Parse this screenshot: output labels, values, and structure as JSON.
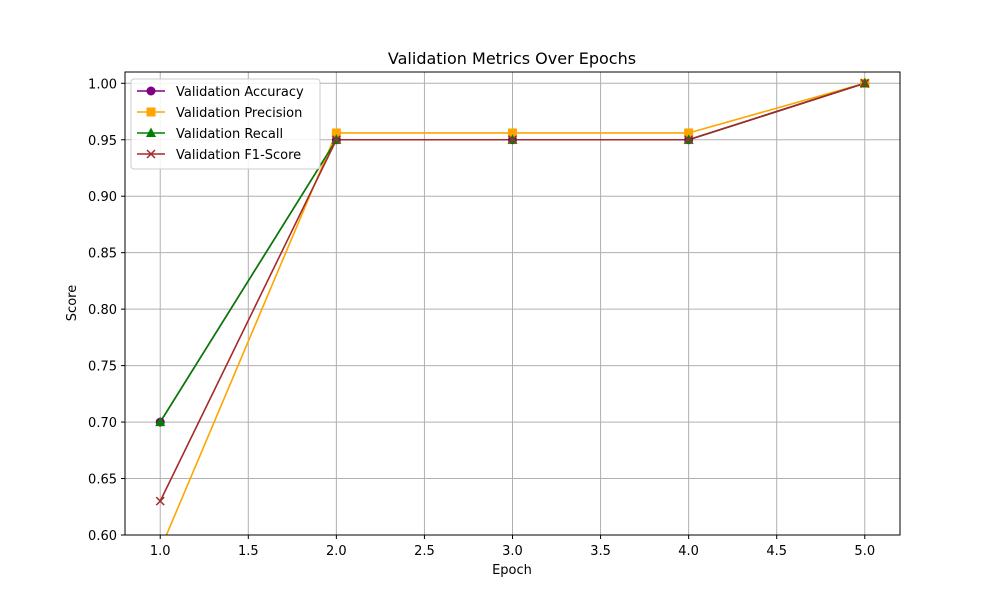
{
  "chart_data": {
    "type": "line",
    "title": "Validation Metrics Over Epochs",
    "xlabel": "Epoch",
    "ylabel": "Score",
    "xlim": [
      0.8,
      5.2
    ],
    "ylim": [
      0.6,
      1.01
    ],
    "xticks": [
      1.0,
      1.5,
      2.0,
      2.5,
      3.0,
      3.5,
      4.0,
      4.5,
      5.0
    ],
    "xtick_labels": [
      "1.0",
      "1.5",
      "2.0",
      "2.5",
      "3.0",
      "3.5",
      "4.0",
      "4.5",
      "5.0"
    ],
    "yticks": [
      0.6,
      0.65,
      0.7,
      0.75,
      0.8,
      0.85,
      0.9,
      0.95,
      1.0
    ],
    "ytick_labels": [
      "0.60",
      "0.65",
      "0.70",
      "0.75",
      "0.80",
      "0.85",
      "0.90",
      "0.95",
      "1.00"
    ],
    "grid": true,
    "legend_position": "top-left",
    "x": [
      1,
      2,
      3,
      4,
      5
    ],
    "series": [
      {
        "name": "Validation Accuracy",
        "values": [
          0.7,
          0.95,
          0.95,
          0.95,
          1.0
        ],
        "color": "#800080",
        "marker": "circle"
      },
      {
        "name": "Validation Precision",
        "values": [
          0.587,
          0.956,
          0.956,
          0.956,
          1.0
        ],
        "color": "#ffa500",
        "marker": "square"
      },
      {
        "name": "Validation Recall",
        "values": [
          0.7,
          0.95,
          0.95,
          0.95,
          1.0
        ],
        "color": "#008000",
        "marker": "triangle"
      },
      {
        "name": "Validation F1-Score",
        "values": [
          0.63,
          0.95,
          0.95,
          0.95,
          1.0
        ],
        "color": "#a52a2a",
        "marker": "x"
      }
    ]
  }
}
